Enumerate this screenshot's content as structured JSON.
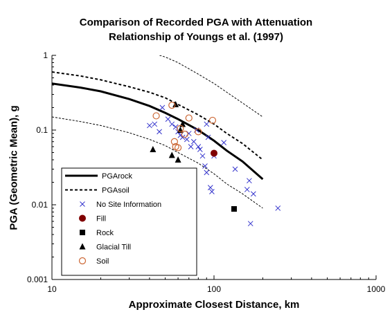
{
  "chart_data": {
    "type": "scatter",
    "title_line1": "Comparison of Recorded PGA with Attenuation",
    "title_line2": "Relationship of Youngs et al. (1997)",
    "xlabel": "Approximate Closest Distance, km",
    "ylabel": "PGA (Geometric Mean), g",
    "x_scale": "log",
    "y_scale": "log",
    "xlim": [
      10,
      1000
    ],
    "ylim": [
      0.001,
      1
    ],
    "x_ticks": [
      "10",
      "100",
      "1000"
    ],
    "y_ticks": [
      "0.001",
      "0.01",
      "0.1",
      "1"
    ],
    "grid": false,
    "legend_placement": "bottom-left",
    "series": [
      {
        "name": "PGArock",
        "kind": "line",
        "style": "solid-thick",
        "x": [
          10,
          15,
          20,
          30,
          40,
          50,
          60,
          80,
          100,
          120,
          150,
          200
        ],
        "y": [
          0.42,
          0.37,
          0.33,
          0.26,
          0.21,
          0.17,
          0.14,
          0.1,
          0.072,
          0.053,
          0.038,
          0.022
        ]
      },
      {
        "name": "PGAsoil",
        "kind": "line",
        "style": "dashed",
        "x": [
          10,
          15,
          20,
          30,
          40,
          50,
          60,
          80,
          100,
          120,
          150,
          200
        ],
        "y": [
          0.6,
          0.53,
          0.47,
          0.38,
          0.32,
          0.27,
          0.22,
          0.16,
          0.12,
          0.09,
          0.066,
          0.04
        ]
      },
      {
        "name": "",
        "kind": "line",
        "style": "thin-dashed",
        "x": [
          10,
          15,
          20,
          30,
          40,
          50,
          60,
          80,
          100,
          120,
          150,
          200
        ],
        "y": [
          0.15,
          0.13,
          0.115,
          0.092,
          0.075,
          0.062,
          0.05,
          0.036,
          0.026,
          0.019,
          0.014,
          0.009
        ]
      },
      {
        "name": "",
        "kind": "line",
        "style": "thin-dashed",
        "x": [
          40,
          50,
          60,
          80,
          100,
          120,
          150,
          200
        ],
        "y": [
          1.1,
          0.95,
          0.8,
          0.56,
          0.42,
          0.32,
          0.23,
          0.15
        ]
      },
      {
        "name": "No Site Information",
        "kind": "scatter",
        "marker": "x",
        "color": "#3333cc",
        "x": [
          40,
          43,
          46,
          48,
          52,
          55,
          58,
          60,
          62,
          64,
          68,
          70,
          72,
          75,
          78,
          80,
          82,
          85,
          88,
          90,
          90,
          92,
          95,
          97,
          100,
          115,
          135,
          160,
          165,
          175,
          248,
          168
        ],
        "y": [
          0.115,
          0.12,
          0.095,
          0.2,
          0.14,
          0.12,
          0.11,
          0.095,
          0.085,
          0.08,
          0.075,
          0.09,
          0.06,
          0.07,
          0.1,
          0.06,
          0.055,
          0.045,
          0.033,
          0.027,
          0.12,
          0.08,
          0.017,
          0.015,
          0.045,
          0.068,
          0.03,
          0.016,
          0.021,
          0.014,
          0.009,
          0.0056
        ]
      },
      {
        "name": "Fill",
        "kind": "scatter",
        "marker": "circle-filled",
        "color": "#800000",
        "x": [
          100
        ],
        "y": [
          0.049
        ]
      },
      {
        "name": "Rock",
        "kind": "scatter",
        "marker": "square-filled",
        "color": "#000000",
        "x": [
          133
        ],
        "y": [
          0.0088
        ]
      },
      {
        "name": "Glacial Till",
        "kind": "scatter",
        "marker": "triangle-filled",
        "color": "#000000",
        "x": [
          42,
          55,
          58,
          60,
          62,
          64
        ],
        "y": [
          0.055,
          0.046,
          0.22,
          0.04,
          0.1,
          0.12
        ]
      },
      {
        "name": "Soil",
        "kind": "scatter",
        "marker": "circle-open",
        "color": "#cc6633",
        "x": [
          44,
          55,
          57,
          58,
          60,
          62,
          66,
          70,
          80,
          98
        ],
        "y": [
          0.155,
          0.215,
          0.07,
          0.06,
          0.058,
          0.105,
          0.088,
          0.145,
          0.095,
          0.135
        ]
      }
    ]
  }
}
